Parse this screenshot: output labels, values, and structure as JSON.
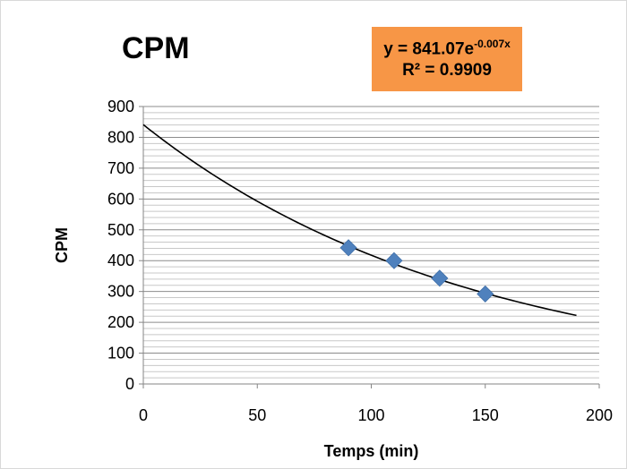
{
  "chart_data": {
    "type": "scatter",
    "title": "CPM",
    "xlabel": "Temps (min)",
    "ylabel": "CPM",
    "xlim": [
      0,
      200
    ],
    "ylim": [
      0,
      900
    ],
    "x_ticks": [
      "0",
      "50",
      "100",
      "150",
      "200"
    ],
    "y_ticks": [
      "0",
      "100",
      "200",
      "300",
      "400",
      "500",
      "600",
      "700",
      "800",
      "900"
    ],
    "grid": "horizontal",
    "series": [
      {
        "marker": "diamond",
        "color": "#4f81bd",
        "points": [
          {
            "x": 90,
            "y": 442
          },
          {
            "x": 110,
            "y": 400
          },
          {
            "x": 130,
            "y": 343
          },
          {
            "x": 150,
            "y": 292
          }
        ]
      }
    ],
    "trendline": {
      "type": "exponential",
      "a": 841.07,
      "b": -0.007,
      "x_range": [
        0,
        190
      ],
      "color": "#000000",
      "equation_prefix": "y = 841.07e",
      "equation_exponent": "-0.007x",
      "r_squared": "R² = 0.9909",
      "label_background": "#f79646"
    }
  }
}
